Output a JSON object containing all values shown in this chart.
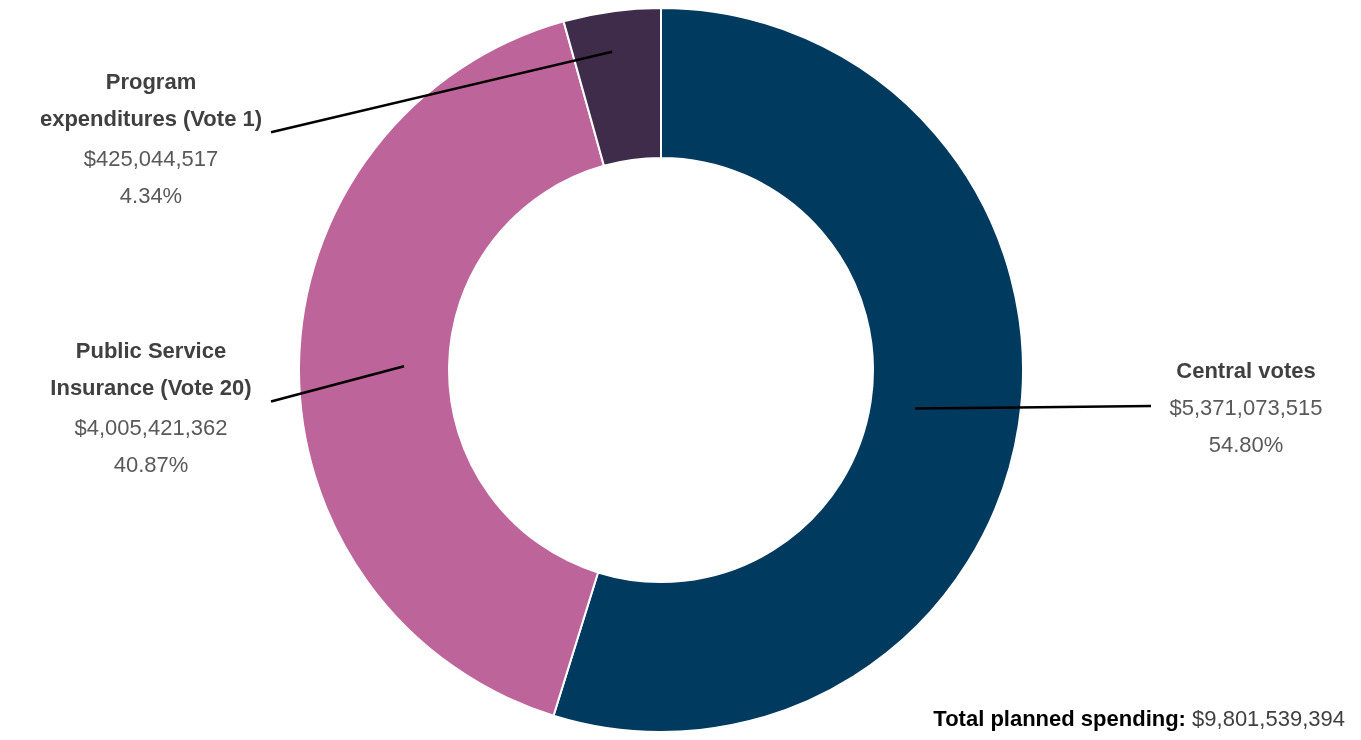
{
  "chart_data": {
    "type": "donut",
    "categories": [
      "Central votes",
      "Public Service Insurance (Vote 20)",
      "Program expenditures (Vote 1)"
    ],
    "values": [
      5371073515,
      4005421362,
      425044517
    ],
    "colors": [
      "#003a5e",
      "#bd649b",
      "#3e2c4a"
    ],
    "value_labels": [
      "$5,371,073,515\n54.80%",
      "$4,005,421,362\n40.87%",
      "$425,044,517\n4.34%"
    ],
    "annotations": [
      "Total planned spending: $9,801,539,394"
    ]
  }
}
